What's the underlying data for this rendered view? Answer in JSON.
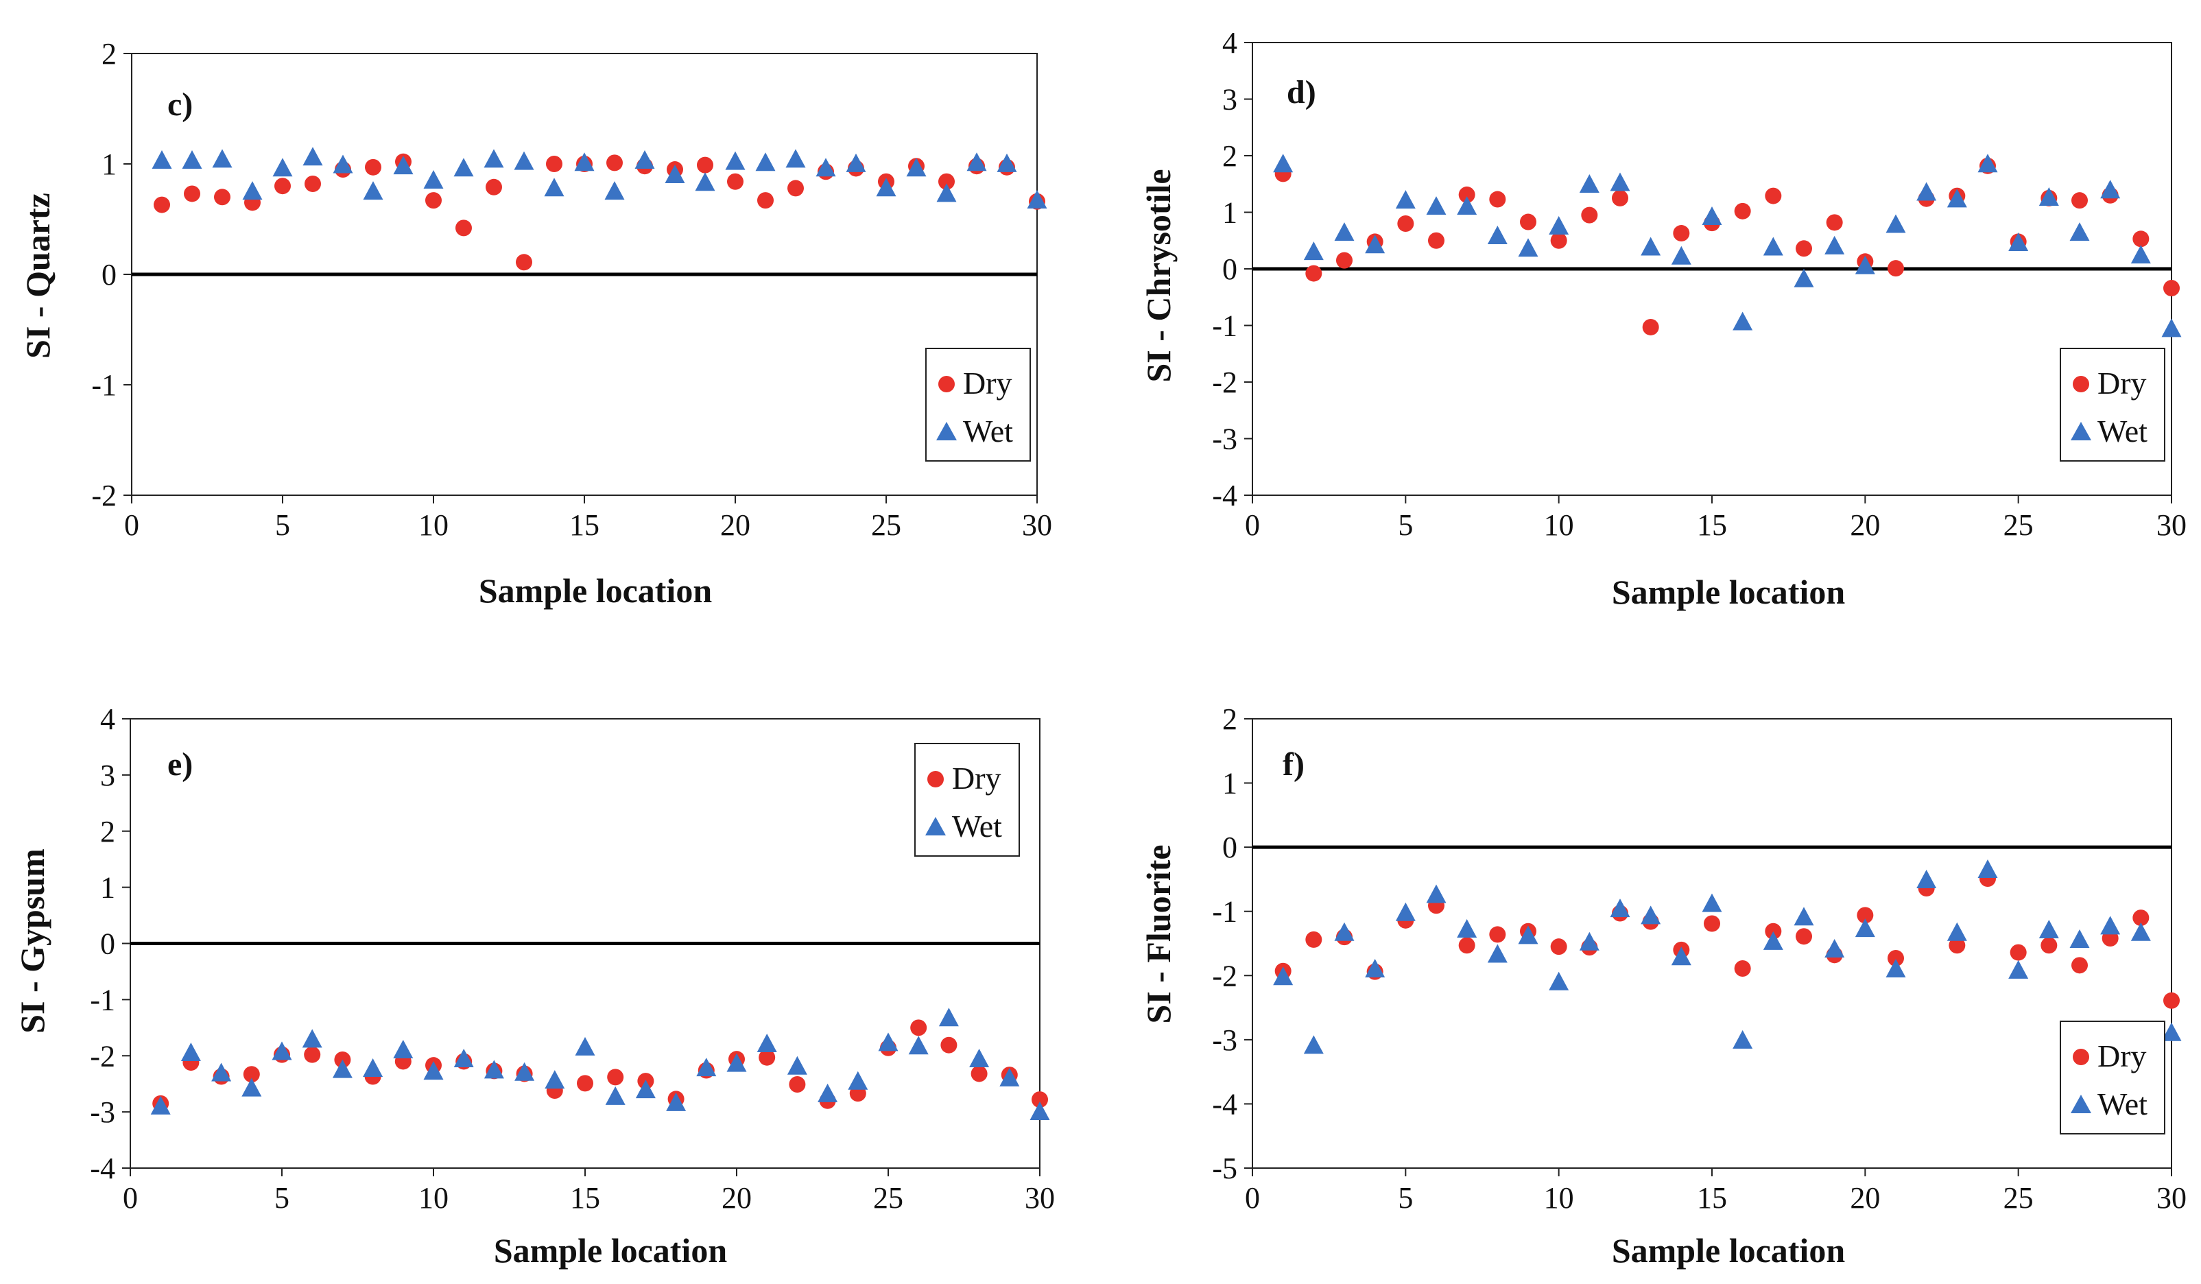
{
  "colors": {
    "dry": "#e8312a",
    "wet": "#3a73c4",
    "axis": "#222222",
    "zero_line": "#000000"
  },
  "legend_labels": {
    "dry": "Dry",
    "wet": "Wet"
  },
  "chart_data": [
    {
      "type": "scatter",
      "panel_label": "c)",
      "ylabel": "SI - Quartz",
      "xlabel": "Sample location",
      "xlim": [
        0,
        30
      ],
      "ylim": [
        -2,
        2
      ],
      "xticks": [
        0,
        5,
        10,
        15,
        20,
        25,
        30
      ],
      "yticks": [
        -2,
        -1,
        0,
        1,
        2
      ],
      "legend_position": "bottom-right",
      "x": [
        1,
        2,
        3,
        4,
        5,
        6,
        7,
        8,
        9,
        10,
        11,
        12,
        13,
        14,
        15,
        16,
        17,
        18,
        19,
        20,
        21,
        22,
        23,
        24,
        25,
        26,
        27,
        28,
        29,
        30
      ],
      "series": [
        {
          "name": "Dry",
          "marker": "circle",
          "values": [
            0.63,
            0.73,
            0.7,
            0.65,
            0.8,
            0.82,
            0.95,
            0.97,
            1.02,
            0.67,
            0.42,
            0.79,
            0.11,
            1.0,
            1.0,
            1.01,
            0.98,
            0.95,
            0.99,
            0.84,
            0.67,
            0.78,
            0.93,
            0.96,
            0.84,
            0.98,
            0.84,
            0.98,
            0.97,
            0.66
          ]
        },
        {
          "name": "Wet",
          "marker": "triangle",
          "values": [
            1.02,
            1.02,
            1.03,
            0.74,
            0.95,
            1.05,
            0.98,
            0.74,
            0.97,
            0.84,
            0.95,
            1.03,
            1.01,
            0.77,
            1.0,
            0.74,
            1.02,
            0.89,
            0.82,
            1.01,
            1.0,
            1.03,
            0.95,
            0.99,
            0.77,
            0.95,
            0.72,
            1.0,
            0.99,
            0.66
          ]
        }
      ]
    },
    {
      "type": "scatter",
      "panel_label": "d)",
      "ylabel": "SI - Chrysotile",
      "xlabel": "Sample location",
      "xlim": [
        0,
        30
      ],
      "ylim": [
        -4,
        4
      ],
      "xticks": [
        0,
        5,
        10,
        15,
        20,
        25,
        30
      ],
      "yticks": [
        -4,
        -3,
        -2,
        -1,
        0,
        1,
        2,
        3,
        4
      ],
      "legend_position": "bottom-right",
      "x": [
        1,
        2,
        3,
        4,
        5,
        6,
        7,
        8,
        9,
        10,
        11,
        12,
        13,
        14,
        15,
        16,
        17,
        18,
        19,
        20,
        21,
        22,
        23,
        24,
        25,
        26,
        27,
        28,
        29,
        30
      ],
      "series": [
        {
          "name": "Dry",
          "marker": "circle",
          "values": [
            1.68,
            -0.08,
            0.15,
            0.48,
            0.8,
            0.5,
            1.31,
            1.23,
            0.83,
            0.5,
            0.95,
            1.25,
            -1.03,
            0.63,
            0.81,
            1.02,
            1.29,
            0.36,
            0.82,
            0.13,
            0.01,
            1.24,
            1.29,
            1.82,
            0.48,
            1.25,
            1.21,
            1.3,
            0.53,
            -0.34
          ]
        },
        {
          "name": "Wet",
          "marker": "triangle",
          "values": [
            1.83,
            0.28,
            0.62,
            0.4,
            1.19,
            1.08,
            1.08,
            0.56,
            0.34,
            0.73,
            1.47,
            1.5,
            0.36,
            0.2,
            0.9,
            -0.96,
            0.36,
            -0.2,
            0.38,
            0.03,
            0.76,
            1.33,
            1.21,
            1.83,
            0.44,
            1.24,
            0.62,
            1.37,
            0.22,
            -1.08
          ]
        }
      ]
    },
    {
      "type": "scatter",
      "panel_label": "e)",
      "ylabel": "SI - Gypsum",
      "xlabel": "Sample location",
      "xlim": [
        0,
        30
      ],
      "ylim": [
        -4,
        4
      ],
      "xticks": [
        0,
        5,
        10,
        15,
        20,
        25,
        30
      ],
      "yticks": [
        -4,
        -3,
        -2,
        -1,
        0,
        1,
        2,
        3,
        4
      ],
      "legend_position": "top-right",
      "x": [
        1,
        2,
        3,
        4,
        5,
        6,
        7,
        8,
        9,
        10,
        11,
        12,
        13,
        14,
        15,
        16,
        17,
        18,
        19,
        20,
        21,
        22,
        23,
        24,
        25,
        26,
        27,
        28,
        29,
        30
      ],
      "series": [
        {
          "name": "Dry",
          "marker": "circle",
          "values": [
            -2.85,
            -2.12,
            -2.37,
            -2.33,
            -1.98,
            -1.98,
            -2.07,
            -2.37,
            -2.1,
            -2.17,
            -2.1,
            -2.27,
            -2.32,
            -2.62,
            -2.49,
            -2.38,
            -2.45,
            -2.77,
            -2.26,
            -2.06,
            -2.03,
            -2.51,
            -2.8,
            -2.67,
            -1.86,
            -1.5,
            -1.81,
            -2.32,
            -2.34,
            -2.78
          ]
        },
        {
          "name": "Wet",
          "marker": "triangle",
          "values": [
            -2.92,
            -1.97,
            -2.33,
            -2.6,
            -1.95,
            -1.73,
            -2.27,
            -2.25,
            -1.92,
            -2.3,
            -2.08,
            -2.28,
            -2.32,
            -2.46,
            -1.87,
            -2.75,
            -2.63,
            -2.86,
            -2.24,
            -2.16,
            -1.81,
            -2.21,
            -2.7,
            -2.48,
            -1.79,
            -1.85,
            -1.35,
            -2.08,
            -2.42,
            -3.02
          ]
        }
      ]
    },
    {
      "type": "scatter",
      "panel_label": "f)",
      "ylabel": "SI - Fluorite",
      "xlabel": "Sample location",
      "xlim": [
        0,
        30
      ],
      "ylim": [
        -5,
        2
      ],
      "xticks": [
        0,
        5,
        10,
        15,
        20,
        25,
        30
      ],
      "yticks": [
        -5,
        -4,
        -3,
        -2,
        -1,
        0,
        1,
        2
      ],
      "legend_position": "bottom-right",
      "x": [
        1,
        2,
        3,
        4,
        5,
        6,
        7,
        8,
        9,
        10,
        11,
        12,
        13,
        14,
        15,
        16,
        17,
        18,
        19,
        20,
        21,
        22,
        23,
        24,
        25,
        26,
        27,
        28,
        29,
        30
      ],
      "series": [
        {
          "name": "Dry",
          "marker": "circle",
          "values": [
            -1.93,
            -1.44,
            -1.4,
            -1.94,
            -1.14,
            -0.91,
            -1.53,
            -1.36,
            -1.31,
            -1.55,
            -1.56,
            -1.03,
            -1.16,
            -1.6,
            -1.19,
            -1.89,
            -1.31,
            -1.39,
            -1.68,
            -1.06,
            -1.73,
            -0.64,
            -1.53,
            -0.49,
            -1.64,
            -1.53,
            -1.84,
            -1.42,
            -1.1,
            -2.39
          ]
        },
        {
          "name": "Wet",
          "marker": "triangle",
          "values": [
            -2.04,
            -3.11,
            -1.35,
            -1.92,
            -1.04,
            -0.76,
            -1.3,
            -1.69,
            -1.4,
            -2.12,
            -1.5,
            -0.98,
            -1.09,
            -1.73,
            -0.9,
            -3.03,
            -1.49,
            -1.11,
            -1.61,
            -1.29,
            -1.92,
            -0.53,
            -1.35,
            -0.37,
            -1.94,
            -1.31,
            -1.46,
            -1.25,
            -1.35,
            -2.91
          ]
        }
      ]
    }
  ]
}
